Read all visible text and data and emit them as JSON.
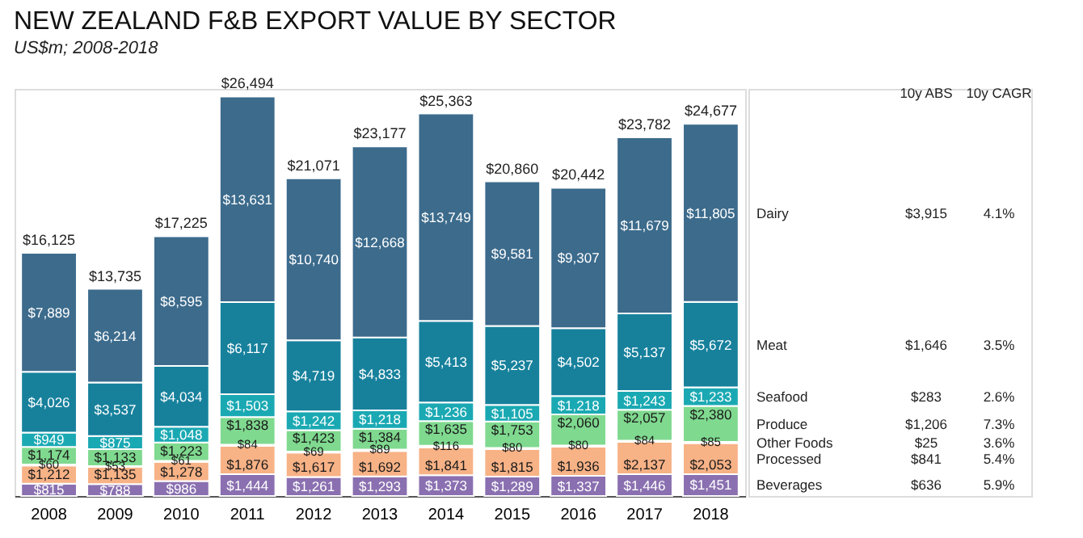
{
  "chart_data": {
    "type": "bar",
    "title": "NEW ZEALAND F&B EXPORT VALUE BY SECTOR",
    "subtitle": "US$m; 2008-2018",
    "categories": [
      "2008",
      "2009",
      "2010",
      "2011",
      "2012",
      "2013",
      "2014",
      "2015",
      "2016",
      "2017",
      "2018"
    ],
    "stacked": true,
    "ylim": [
      0,
      27000
    ],
    "tick_labels": "x",
    "grid": false,
    "legend": false,
    "series": [
      {
        "name": "Beverages",
        "color": "#8a70b0",
        "values": [
          815,
          788,
          986,
          1444,
          1261,
          1293,
          1373,
          1289,
          1337,
          1446,
          1451
        ],
        "value_labels": [
          "$815",
          "$788",
          "$986",
          "$1,444",
          "$1,261",
          "$1,293",
          "$1,373",
          "$1,289",
          "$1,337",
          "$1,446",
          "$1,451"
        ]
      },
      {
        "name": "Processed",
        "color": "#f7b286",
        "values": [
          1212,
          1135,
          1278,
          1876,
          1617,
          1692,
          1841,
          1815,
          1936,
          2137,
          2053
        ],
        "value_labels": [
          "$1,212",
          "$1,135",
          "$1,278",
          "$1,876",
          "$1,617",
          "$1,692",
          "$1,841",
          "$1,815",
          "$1,936",
          "$2,137",
          "$2,053"
        ]
      },
      {
        "name": "Other Foods",
        "color": "#e4efb4",
        "values": [
          60,
          53,
          61,
          84,
          69,
          89,
          116,
          80,
          80,
          84,
          85
        ],
        "value_labels": [
          "$60",
          "$53",
          "$61",
          "$84",
          "$69",
          "$89",
          "$116",
          "$80",
          "$80",
          "$84",
          "$85"
        ]
      },
      {
        "name": "Produce",
        "color": "#7fd98f",
        "values": [
          1174,
          1133,
          1223,
          1838,
          1423,
          1384,
          1635,
          1753,
          2060,
          2057,
          2380
        ],
        "value_labels": [
          "$1,174",
          "$1,133",
          "$1,223",
          "$1,838",
          "$1,423",
          "$1,384",
          "$1,635",
          "$1,753",
          "$2,060",
          "$2,057",
          "$2,380"
        ]
      },
      {
        "name": "Seafood",
        "color": "#1aa9b3",
        "values": [
          949,
          875,
          1048,
          1503,
          1242,
          1218,
          1236,
          1105,
          1218,
          1243,
          1233
        ],
        "value_labels": [
          "$949",
          "$875",
          "$1,048",
          "$1,503",
          "$1,242",
          "$1,218",
          "$1,236",
          "$1,105",
          "$1,218",
          "$1,243",
          "$1,233"
        ]
      },
      {
        "name": "Meat",
        "color": "#17819c",
        "values": [
          4026,
          3537,
          4034,
          6117,
          4719,
          4833,
          5413,
          5237,
          4502,
          5137,
          5672
        ],
        "value_labels": [
          "$4,026",
          "$3,537",
          "$4,034",
          "$6,117",
          "$4,719",
          "$4,833",
          "$5,413",
          "$5,237",
          "$4,502",
          "$5,137",
          "$5,672"
        ]
      },
      {
        "name": "Dairy",
        "color": "#3c6b8c",
        "values": [
          7889,
          6214,
          8595,
          13631,
          10740,
          12668,
          13749,
          9581,
          9307,
          11679,
          11805
        ],
        "value_labels": [
          "$7,889",
          "$6,214",
          "$8,595",
          "$13,631",
          "$10,740",
          "$12,668",
          "$13,749",
          "$9,581",
          "$9,307",
          "$11,679",
          "$11,805"
        ]
      }
    ],
    "totals": [
      "$16,125",
      "$13,735",
      "$17,225",
      "$26,494",
      "$21,071",
      "$23,177",
      "$25,363",
      "$20,860",
      "$20,442",
      "$23,782",
      "$24,677"
    ],
    "annotations": [
      "10y ABS",
      "10y CAGR",
      "$636",
      "5.9%",
      "$841",
      "5.4%",
      "$25",
      "3.6%",
      "$1,206",
      "7.3%",
      "$283",
      "2.6%",
      "$1,646",
      "3.5%",
      "$3,915",
      "4.1%"
    ]
  }
}
